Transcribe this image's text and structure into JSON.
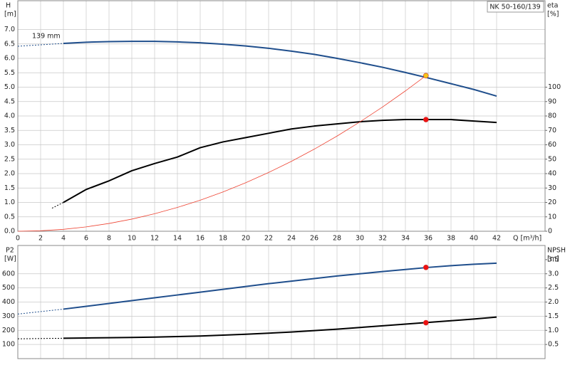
{
  "chart_data": [
    {
      "type": "line",
      "title": "NK 50-160/139",
      "annotation": "139 mm",
      "ylabel": "H",
      "yunit": "[m]",
      "y2label": "eta",
      "y2unit": "[%]",
      "xlabel": "Q [m³/h]",
      "xlim": [
        0,
        46.25
      ],
      "xticks": [
        0,
        2,
        4,
        6,
        8,
        10,
        12,
        14,
        16,
        18,
        20,
        22,
        24,
        26,
        28,
        30,
        32,
        34,
        36,
        38,
        40,
        42
      ],
      "ylim": [
        0,
        8
      ],
      "yticks": [
        {
          "value": 0,
          "label": "0.0"
        },
        0.5,
        {
          "value": 1,
          "label": "1.0"
        },
        1.5,
        {
          "value": 2,
          "label": "2.0"
        },
        2.5,
        {
          "value": 3,
          "label": "3.0"
        },
        3.5,
        {
          "value": 4,
          "label": "4.0"
        },
        4.5,
        {
          "value": 5,
          "label": "5.0"
        },
        5.5,
        {
          "value": 6,
          "label": "6.0"
        },
        6.5,
        {
          "value": 7,
          "label": "7.0"
        }
      ],
      "y2lim": [
        0,
        160
      ],
      "y2ticks": [
        0,
        10,
        20,
        30,
        40,
        50,
        60,
        70,
        80,
        90,
        100
      ],
      "grid": true,
      "series": [
        {
          "color": "#1f4e8c",
          "dashed": true,
          "line_width": 1,
          "x": [
            0,
            4
          ],
          "values": [
            6.42,
            6.52
          ]
        },
        {
          "color": "#1f4e8c",
          "dashed": false,
          "line_width": 2,
          "x": [
            4,
            6,
            8,
            10,
            12,
            14,
            16,
            18,
            20,
            22,
            24,
            26,
            28,
            30,
            32,
            34,
            36,
            38,
            40,
            42
          ],
          "values": [
            6.52,
            6.56,
            6.58,
            6.59,
            6.59,
            6.57,
            6.54,
            6.49,
            6.43,
            6.35,
            6.25,
            6.14,
            6.0,
            5.85,
            5.69,
            5.51,
            5.32,
            5.12,
            4.92,
            4.69
          ]
        },
        {
          "color": "#000000",
          "dashed": true,
          "line_width": 1,
          "axis": "y2",
          "x": [
            3,
            4
          ],
          "values": [
            16,
            20
          ]
        },
        {
          "color": "#000000",
          "dashed": false,
          "line_width": 2,
          "axis": "y2",
          "x": [
            4,
            6,
            8,
            10,
            12,
            14,
            16,
            18,
            20,
            22,
            24,
            26,
            28,
            30,
            32,
            34,
            36,
            38,
            40,
            42
          ],
          "values": [
            20,
            29,
            35,
            42,
            47,
            51.5,
            58,
            62,
            65,
            68,
            71,
            73,
            74.5,
            76,
            77,
            77.5,
            77.5,
            77.5,
            76.5,
            75.5
          ]
        },
        {
          "color": "#ee4433",
          "dashed": false,
          "line_width": 0.8,
          "x": [
            0,
            2,
            4,
            6,
            8,
            10,
            12,
            14,
            16,
            18,
            20,
            22,
            24,
            26,
            28,
            30,
            32,
            34,
            35.8
          ],
          "values": [
            0,
            0.017,
            0.067,
            0.152,
            0.27,
            0.421,
            0.607,
            0.826,
            1.078,
            1.365,
            1.685,
            2.039,
            2.427,
            2.848,
            3.303,
            3.792,
            4.314,
            4.87,
            5.4
          ]
        }
      ],
      "points": [
        {
          "x": 35.8,
          "y": 5.4,
          "color": "#f5c518"
        },
        {
          "x": 35.8,
          "y": 77.5,
          "color": "#ee1111",
          "axis": "y2"
        }
      ]
    },
    {
      "type": "line",
      "ylabel": "P2",
      "yunit": "[W]",
      "y2label": "NPSH",
      "y2unit": "[m]",
      "xlim": [
        0,
        46.25
      ],
      "ylim": [
        0,
        800
      ],
      "yticks": [
        100,
        200,
        300,
        400,
        500,
        600
      ],
      "y2lim": [
        0,
        4
      ],
      "y2ticks": [
        0.5,
        {
          "value": 1,
          "label": "1.0"
        },
        1.5,
        {
          "value": 2,
          "label": "2.0"
        },
        2.5,
        {
          "value": 3,
          "label": "3.0"
        },
        3.5
      ],
      "grid": true,
      "series": [
        {
          "color": "#1f4e8c",
          "dashed": true,
          "line_width": 1,
          "x": [
            0,
            4
          ],
          "values": [
            315,
            350
          ]
        },
        {
          "color": "#1f4e8c",
          "dashed": false,
          "line_width": 2,
          "x": [
            4,
            6,
            8,
            10,
            12,
            14,
            16,
            18,
            20,
            22,
            24,
            26,
            28,
            30,
            32,
            34,
            36,
            38,
            40,
            42
          ],
          "values": [
            350,
            370,
            390,
            410,
            430,
            450,
            470,
            490,
            510,
            530,
            548,
            566,
            584,
            600,
            616,
            630,
            645,
            657,
            667,
            675
          ]
        },
        {
          "color": "#000000",
          "dashed": true,
          "line_width": 1,
          "axis": "y2",
          "x": [
            0,
            4
          ],
          "values": [
            0.7,
            0.72
          ]
        },
        {
          "color": "#000000",
          "dashed": false,
          "line_width": 2,
          "axis": "y2",
          "x": [
            4,
            6,
            8,
            10,
            12,
            14,
            16,
            18,
            20,
            22,
            24,
            26,
            28,
            30,
            32,
            34,
            36,
            38,
            40,
            42
          ],
          "values": [
            0.72,
            0.73,
            0.74,
            0.75,
            0.76,
            0.78,
            0.8,
            0.83,
            0.86,
            0.9,
            0.94,
            0.99,
            1.04,
            1.1,
            1.16,
            1.22,
            1.28,
            1.34,
            1.4,
            1.47
          ]
        }
      ],
      "points": [
        {
          "x": 35.8,
          "y": 645,
          "color": "#ee1111"
        },
        {
          "x": 35.8,
          "y": 1.27,
          "color": "#ee1111",
          "axis": "y2"
        }
      ]
    }
  ]
}
